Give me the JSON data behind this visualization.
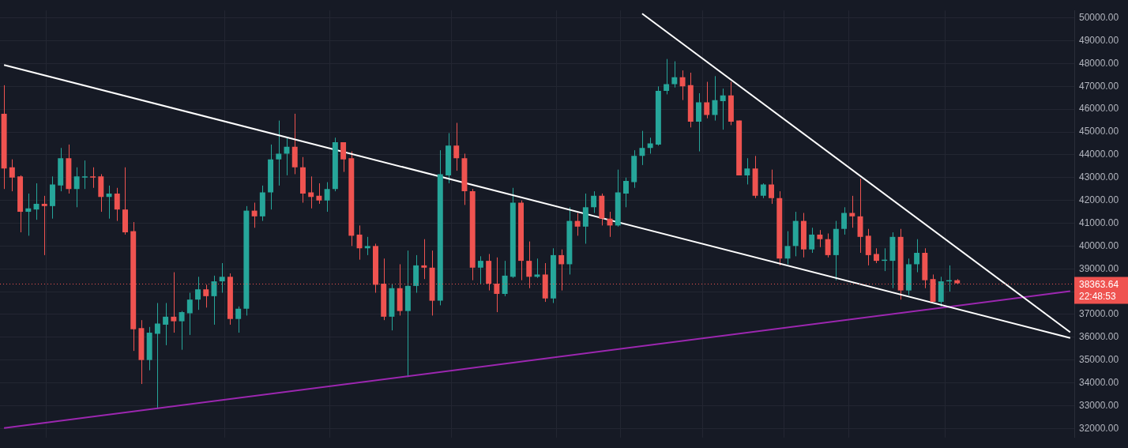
{
  "chart_data": {
    "type": "candlestick",
    "categories": [
      null,
      null,
      null,
      null,
      null,
      null,
      null,
      null,
      null,
      null,
      null,
      null,
      null,
      null,
      null,
      null,
      null,
      null,
      null,
      null,
      null,
      null,
      null,
      null,
      null,
      null,
      null,
      null,
      null,
      null,
      null,
      null,
      null,
      null,
      null,
      null,
      null,
      null,
      null,
      null,
      null,
      null,
      null,
      null,
      null,
      null,
      null,
      null,
      null,
      null,
      null,
      null,
      null,
      null,
      null,
      null,
      null,
      null,
      null,
      null,
      null,
      null,
      null,
      null,
      null,
      null,
      null,
      null,
      null,
      null,
      null,
      null,
      null,
      null,
      null,
      null,
      null,
      null,
      null,
      null,
      null,
      null,
      null,
      null,
      null,
      null,
      null,
      null,
      null,
      null,
      null,
      null,
      null,
      null,
      null,
      null,
      null,
      null,
      null,
      null,
      null,
      null,
      null,
      null,
      null,
      null,
      null,
      null,
      null,
      null,
      null,
      null,
      null,
      null,
      null,
      null,
      null,
      null,
      null,
      null,
      null,
      null,
      null,
      null,
      null,
      null,
      null,
      null,
      null,
      null,
      null,
      null,
      null
    ],
    "ohlc": [
      [
        45800,
        47050,
        42500,
        43400
      ],
      [
        43450,
        43800,
        42400,
        43000
      ],
      [
        43050,
        43100,
        40600,
        41500
      ],
      [
        41500,
        42300,
        40450,
        41650
      ],
      [
        41600,
        42750,
        41150,
        41850
      ],
      [
        41850,
        42200,
        39600,
        41750
      ],
      [
        41750,
        43050,
        41200,
        42700
      ],
      [
        42650,
        44300,
        42400,
        43850
      ],
      [
        43850,
        44450,
        42300,
        42500
      ],
      [
        42500,
        43450,
        41700,
        43050
      ],
      [
        43000,
        43750,
        42500,
        43050
      ],
      [
        43050,
        43450,
        42550,
        43000
      ],
      [
        43050,
        43150,
        41500,
        42150
      ],
      [
        42150,
        42650,
        41200,
        42300
      ],
      [
        42300,
        42550,
        41100,
        41600
      ],
      [
        41600,
        43450,
        40500,
        40600
      ],
      [
        40650,
        41050,
        35400,
        36350
      ],
      [
        36400,
        36750,
        33950,
        35000
      ],
      [
        35000,
        36450,
        34550,
        36200
      ],
      [
        36150,
        37500,
        32850,
        36600
      ],
      [
        36550,
        37500,
        35650,
        36900
      ],
      [
        36900,
        38850,
        36200,
        36700
      ],
      [
        36700,
        37150,
        35450,
        37100
      ],
      [
        37050,
        37950,
        36100,
        37650
      ],
      [
        37650,
        38650,
        37200,
        38100
      ],
      [
        38100,
        38300,
        37300,
        37800
      ],
      [
        37800,
        38700,
        36550,
        38450
      ],
      [
        38450,
        39250,
        37950,
        38650
      ],
      [
        38650,
        38800,
        36550,
        36800
      ],
      [
        36800,
        37350,
        36200,
        37250
      ],
      [
        37250,
        41750,
        36950,
        41550
      ],
      [
        41550,
        41900,
        40800,
        41300
      ],
      [
        41300,
        42650,
        41100,
        42350
      ],
      [
        42350,
        44450,
        41600,
        43800
      ],
      [
        43800,
        45500,
        42650,
        44050
      ],
      [
        44050,
        44750,
        43100,
        44350
      ],
      [
        44350,
        45800,
        43150,
        43450
      ],
      [
        43450,
        43900,
        41900,
        42300
      ],
      [
        42350,
        43050,
        41650,
        42150
      ],
      [
        42200,
        42750,
        41850,
        42000
      ],
      [
        42000,
        42800,
        41500,
        42500
      ],
      [
        42500,
        44750,
        42400,
        44550
      ],
      [
        44550,
        44550,
        43250,
        43800
      ],
      [
        43850,
        44150,
        40000,
        40450
      ],
      [
        40500,
        40900,
        39400,
        39900
      ],
      [
        39900,
        40400,
        39600,
        40000
      ],
      [
        40000,
        40100,
        37950,
        38300
      ],
      [
        38350,
        39450,
        36750,
        36900
      ],
      [
        36900,
        38350,
        36300,
        38150
      ],
      [
        38150,
        39200,
        36950,
        37150
      ],
      [
        37150,
        39800,
        34250,
        38250
      ],
      [
        38250,
        39600,
        37950,
        39150
      ],
      [
        39150,
        40300,
        38550,
        39050
      ],
      [
        39050,
        39800,
        36950,
        37600
      ],
      [
        37600,
        44200,
        37400,
        43150
      ],
      [
        43100,
        44950,
        42750,
        44400
      ],
      [
        44400,
        45400,
        43300,
        43850
      ],
      [
        43850,
        44050,
        41800,
        42400
      ],
      [
        42400,
        42500,
        38500,
        39050
      ],
      [
        39050,
        39550,
        38350,
        39350
      ],
      [
        39350,
        39650,
        38050,
        38350
      ],
      [
        38350,
        39500,
        37100,
        37900
      ],
      [
        37900,
        39350,
        37800,
        38700
      ],
      [
        38650,
        42550,
        38600,
        41900
      ],
      [
        41900,
        42000,
        38500,
        39350
      ],
      [
        39350,
        40200,
        38150,
        38650
      ],
      [
        38650,
        39450,
        38600,
        38750
      ],
      [
        38750,
        39250,
        37550,
        37700
      ],
      [
        37700,
        39900,
        37500,
        39600
      ],
      [
        39600,
        39850,
        38050,
        39200
      ],
      [
        39200,
        41700,
        38750,
        41100
      ],
      [
        41100,
        41450,
        40450,
        40850
      ],
      [
        40850,
        42300,
        40100,
        41700
      ],
      [
        41700,
        42400,
        41450,
        42200
      ],
      [
        42200,
        42300,
        40900,
        41200
      ],
      [
        41200,
        41500,
        40400,
        40900
      ],
      [
        40900,
        43350,
        40850,
        42350
      ],
      [
        42300,
        43000,
        41700,
        42850
      ],
      [
        42800,
        44200,
        42550,
        43950
      ],
      [
        43950,
        45050,
        43550,
        44300
      ],
      [
        44300,
        44750,
        44050,
        44500
      ],
      [
        44450,
        47000,
        44400,
        46800
      ],
      [
        46800,
        48200,
        46650,
        47100
      ],
      [
        47100,
        48100,
        46950,
        47400
      ],
      [
        47400,
        47700,
        46400,
        47000
      ],
      [
        47050,
        47600,
        45200,
        45450
      ],
      [
        45450,
        46700,
        44150,
        46300
      ],
      [
        46300,
        47200,
        45600,
        45750
      ],
      [
        45750,
        47450,
        45500,
        46400
      ],
      [
        46350,
        46900,
        45100,
        46600
      ],
      [
        46600,
        47200,
        45300,
        45450
      ],
      [
        45500,
        45500,
        43100,
        43100
      ],
      [
        43100,
        43850,
        42700,
        43400
      ],
      [
        43400,
        43950,
        42100,
        42200
      ],
      [
        42200,
        42750,
        42100,
        42700
      ],
      [
        42700,
        43350,
        41850,
        42100
      ],
      [
        42100,
        42400,
        39150,
        39450
      ],
      [
        39450,
        40650,
        39200,
        40000
      ],
      [
        40000,
        41500,
        39550,
        41100
      ],
      [
        41100,
        41450,
        39500,
        39850
      ],
      [
        39850,
        40800,
        39700,
        40500
      ],
      [
        40500,
        40700,
        39950,
        40300
      ],
      [
        40300,
        40550,
        39500,
        39600
      ],
      [
        39600,
        41100,
        38500,
        40750
      ],
      [
        40750,
        41700,
        40500,
        41450
      ],
      [
        41450,
        42200,
        40800,
        41300
      ],
      [
        41300,
        42950,
        39700,
        40400
      ],
      [
        40450,
        40750,
        39150,
        39600
      ],
      [
        39650,
        39900,
        39250,
        39350
      ],
      [
        39350,
        39900,
        38900,
        39400
      ],
      [
        39350,
        40600,
        38150,
        40400
      ],
      [
        40400,
        40750,
        37650,
        38050
      ],
      [
        38050,
        39450,
        37850,
        39200
      ],
      [
        39200,
        40300,
        38850,
        39700
      ],
      [
        39700,
        39900,
        38150,
        38500
      ],
      [
        38550,
        38750,
        37550,
        37550
      ],
      [
        37550,
        38650,
        37350,
        38450
      ],
      [
        38450,
        39150,
        38000,
        38500
      ],
      [
        38500,
        38550,
        38350,
        38363.64
      ],
      null,
      null,
      null,
      null,
      null,
      null,
      null,
      null,
      null,
      null,
      null,
      null,
      null,
      null
    ],
    "colors": [
      "#ef5350",
      "#ef5350",
      "#ef5350",
      "#26a69a",
      "#26a69a",
      "#ef5350",
      "#26a69a",
      "#26a69a",
      "#ef5350",
      "#26a69a",
      "#26a69a",
      "#ef5350",
      "#ef5350",
      "#26a69a",
      "#ef5350",
      "#ef5350",
      "#ef5350",
      "#ef5350",
      "#26a69a",
      "#26a69a",
      "#26a69a",
      "#ef5350",
      "#26a69a",
      "#26a69a",
      "#26a69a",
      "#ef5350",
      "#26a69a",
      "#26a69a",
      "#ef5350",
      "#26a69a",
      "#26a69a",
      "#ef5350",
      "#26a69a",
      "#26a69a",
      "#26a69a",
      "#26a69a",
      "#ef5350",
      "#ef5350",
      "#ef5350",
      "#ef5350",
      "#26a69a",
      "#26a69a",
      "#ef5350",
      "#ef5350",
      "#ef5350",
      "#26a69a",
      "#ef5350",
      "#ef5350",
      "#26a69a",
      "#ef5350",
      "#26a69a",
      "#26a69a",
      "#ef5350",
      "#ef5350",
      "#26a69a",
      "#26a69a",
      "#ef5350",
      "#ef5350",
      "#ef5350",
      "#26a69a",
      "#ef5350",
      "#ef5350",
      "#26a69a",
      "#26a69a",
      "#ef5350",
      "#ef5350",
      "#26a69a",
      "#ef5350",
      "#26a69a",
      "#ef5350",
      "#26a69a",
      "#ef5350",
      "#26a69a",
      "#26a69a",
      "#ef5350",
      "#ef5350",
      "#26a69a",
      "#26a69a",
      "#26a69a",
      "#26a69a",
      "#26a69a",
      "#26a69a",
      "#26a69a",
      "#26a69a",
      "#ef5350",
      "#ef5350",
      "#26a69a",
      "#ef5350",
      "#26a69a",
      "#26a69a",
      "#ef5350",
      "#ef5350",
      "#26a69a",
      "#ef5350",
      "#26a69a",
      "#ef5350",
      "#ef5350",
      "#26a69a",
      "#26a69a",
      "#ef5350",
      "#26a69a",
      "#ef5350",
      "#ef5350",
      "#26a69a",
      "#26a69a",
      "#ef5350",
      "#ef5350",
      "#ef5350",
      "#ef5350",
      "#26a69a",
      "#26a69a",
      "#ef5350",
      "#26a69a",
      "#26a69a",
      "#ef5350",
      "#ef5350",
      "#26a69a",
      "#26a69a",
      "#ef5350",
      null,
      null,
      null,
      null,
      null,
      null,
      null,
      null,
      null,
      null,
      null,
      null,
      null,
      null
    ],
    "series": [
      {
        "type": "line",
        "color": "#ffffff",
        "values": [
          47940,
          null,
          null,
          null,
          null,
          null,
          null,
          null,
          null,
          null,
          null,
          null,
          null,
          null,
          null,
          null,
          null,
          null,
          null,
          null,
          null,
          null,
          null,
          null,
          null,
          null,
          null,
          null,
          null,
          null,
          null,
          null,
          null,
          null,
          null,
          null,
          null,
          null,
          null,
          null,
          null,
          null,
          null,
          null,
          null,
          null,
          null,
          null,
          null,
          null,
          null,
          null,
          null,
          null,
          null,
          null,
          null,
          null,
          null,
          null,
          null,
          null,
          null,
          null,
          null,
          null,
          null,
          null,
          null,
          null,
          null,
          null,
          null,
          null,
          null,
          null,
          null,
          null,
          null,
          null,
          null,
          null,
          null,
          null,
          null,
          null,
          null,
          null,
          null,
          null,
          null,
          null,
          null,
          null,
          null,
          null,
          null,
          null,
          null,
          null,
          null,
          null,
          null,
          null,
          null,
          null,
          null,
          null,
          null,
          null,
          null,
          null,
          null,
          null,
          null,
          null,
          null,
          null,
          null,
          null,
          null,
          null,
          null,
          null,
          null,
          null,
          null,
          null,
          null,
          null,
          null,
          null,
          35970
        ]
      },
      {
        "type": "line",
        "color": "#ffffff",
        "values": [
          null,
          null,
          null,
          null,
          null,
          null,
          null,
          null,
          null,
          null,
          null,
          null,
          null,
          null,
          null,
          null,
          null,
          null,
          null,
          null,
          null,
          null,
          null,
          null,
          null,
          null,
          null,
          null,
          null,
          null,
          null,
          null,
          null,
          null,
          null,
          null,
          null,
          null,
          null,
          null,
          null,
          null,
          null,
          null,
          null,
          null,
          null,
          null,
          null,
          null,
          null,
          null,
          null,
          null,
          null,
          null,
          null,
          null,
          null,
          null,
          null,
          null,
          null,
          null,
          null,
          null,
          null,
          null,
          null,
          null,
          null,
          null,
          null,
          null,
          null,
          null,
          null,
          null,
          null,
          50190,
          null,
          null,
          null,
          null,
          null,
          null,
          null,
          null,
          null,
          null,
          null,
          null,
          null,
          null,
          null,
          null,
          null,
          null,
          null,
          null,
          null,
          null,
          null,
          null,
          null,
          null,
          null,
          null,
          null,
          null,
          null,
          null,
          null,
          null,
          null,
          null,
          null,
          null,
          null,
          null,
          null,
          null,
          null,
          null,
          null,
          null,
          null,
          null,
          null,
          null,
          null,
          null,
          36220
        ]
      },
      {
        "type": "line",
        "color": "#9c27b0",
        "values": [
          32020,
          null,
          null,
          null,
          null,
          null,
          null,
          null,
          null,
          null,
          null,
          null,
          null,
          null,
          null,
          null,
          null,
          null,
          null,
          null,
          null,
          null,
          null,
          null,
          null,
          null,
          null,
          null,
          null,
          null,
          null,
          null,
          null,
          null,
          null,
          null,
          null,
          null,
          null,
          null,
          null,
          null,
          null,
          null,
          null,
          null,
          null,
          null,
          null,
          null,
          null,
          null,
          null,
          null,
          null,
          null,
          null,
          null,
          null,
          null,
          null,
          null,
          null,
          null,
          null,
          null,
          null,
          null,
          null,
          null,
          null,
          null,
          null,
          null,
          null,
          null,
          null,
          null,
          null,
          null,
          null,
          null,
          null,
          null,
          null,
          null,
          null,
          null,
          null,
          null,
          null,
          null,
          null,
          null,
          null,
          null,
          null,
          null,
          null,
          null,
          null,
          null,
          null,
          null,
          null,
          null,
          null,
          null,
          null,
          null,
          null,
          null,
          null,
          null,
          null,
          null,
          null,
          null,
          null,
          null,
          null,
          null,
          null,
          null,
          null,
          null,
          null,
          null,
          null,
          null,
          null,
          null,
          38020
        ]
      }
    ],
    "ylim": [
      31600,
      50330
    ],
    "yticks": [
      {
        "value": 32000,
        "label": "32000.00"
      },
      {
        "value": 33000,
        "label": "33000.00"
      },
      {
        "value": 34000,
        "label": "34000.00"
      },
      {
        "value": 35000,
        "label": "35000.00"
      },
      {
        "value": 36000,
        "label": "36000.00"
      },
      {
        "value": 37000,
        "label": "37000.00"
      },
      {
        "value": 38000,
        "label": null
      },
      {
        "value": 39000,
        "label": "39000.00"
      },
      {
        "value": 40000,
        "label": "40000.00"
      },
      {
        "value": 41000,
        "label": "41000.00"
      },
      {
        "value": 42000,
        "label": "42000.00"
      },
      {
        "value": 43000,
        "label": "43000.00"
      },
      {
        "value": 44000,
        "label": "44000.00"
      },
      {
        "value": 45000,
        "label": "45000.00"
      },
      {
        "value": 46000,
        "label": "46000.00"
      },
      {
        "value": 47000,
        "label": "47000.00"
      },
      {
        "value": 48000,
        "label": "48000.00"
      },
      {
        "value": 49000,
        "label": "49000.00"
      },
      {
        "value": 50000,
        "label": "50000.00"
      }
    ],
    "ref_lines": [
      {
        "axis": "y",
        "value": 38363.64,
        "label": "38363.64",
        "color": "#ef5350",
        "line_style": "dotted"
      }
    ],
    "annotations": [
      "22:48:53"
    ],
    "grid": true,
    "legend": false,
    "tick_labels": "y"
  }
}
